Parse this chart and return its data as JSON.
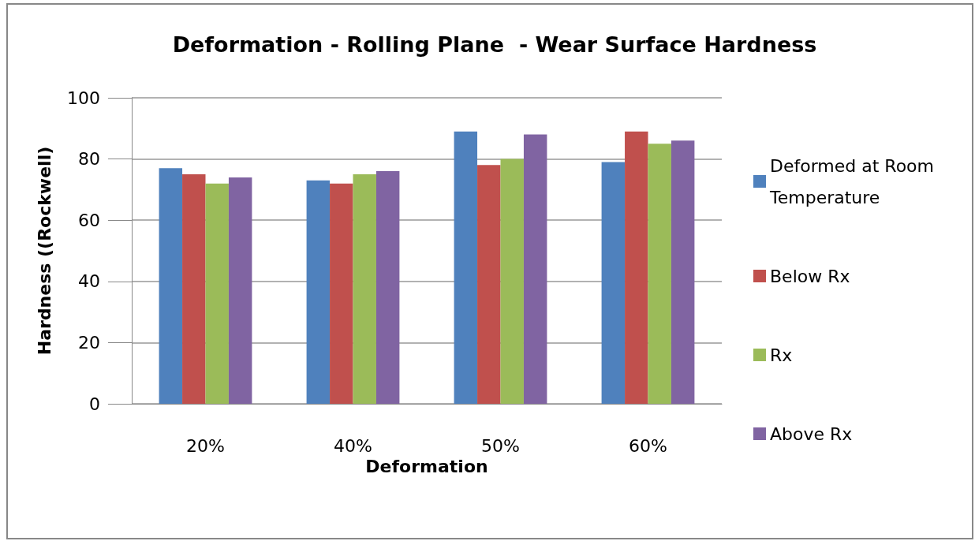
{
  "chart_data": {
    "type": "bar",
    "title": "Deformation - Rolling Plane  - Wear Surface Hardness",
    "xlabel": "Deformation",
    "ylabel": "Hardness ((Rockwell)",
    "categories": [
      "20%",
      "40%",
      "50%",
      "60%"
    ],
    "series": [
      {
        "name": "Deformed at Room Temperature",
        "color": "#4f81bd",
        "values": [
          77,
          73,
          89,
          79
        ]
      },
      {
        "name": "Below Rx",
        "color": "#c0504d",
        "values": [
          75,
          72,
          78,
          89
        ]
      },
      {
        "name": "Rx",
        "color": "#9bbb59",
        "values": [
          72,
          75,
          80,
          85
        ]
      },
      {
        "name": "Above Rx",
        "color": "#8064a2",
        "values": [
          74,
          76,
          88,
          86
        ]
      }
    ],
    "ylim": [
      0,
      100
    ],
    "yticks": [
      0,
      20,
      40,
      60,
      80,
      100
    ],
    "grid": "y",
    "legend": "right"
  }
}
